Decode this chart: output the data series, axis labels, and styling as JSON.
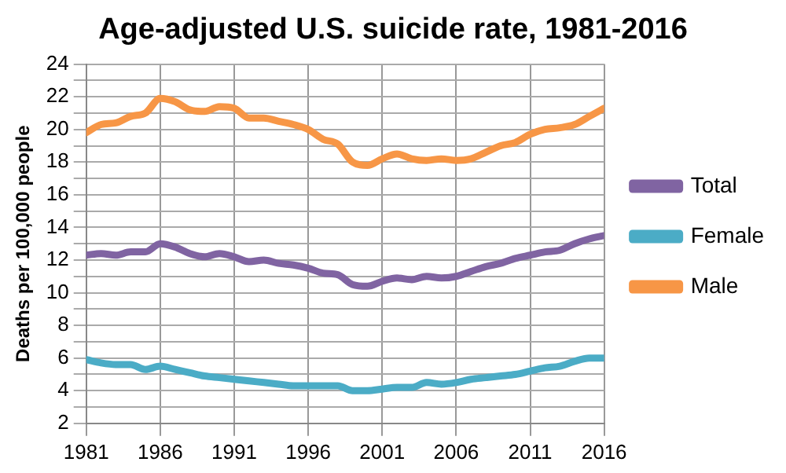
{
  "chart_data": {
    "type": "line",
    "title": "Age-adjusted U.S. suicide rate, 1981-2016",
    "ylabel": "Deaths per 100,000 people",
    "x": [
      1981,
      1982,
      1983,
      1984,
      1985,
      1986,
      1987,
      1988,
      1989,
      1990,
      1991,
      1992,
      1993,
      1994,
      1995,
      1996,
      1997,
      1998,
      1999,
      2000,
      2001,
      2002,
      2003,
      2004,
      2005,
      2006,
      2007,
      2008,
      2009,
      2010,
      2011,
      2012,
      2013,
      2014,
      2015,
      2016
    ],
    "series": [
      {
        "name": "Total",
        "color": "#8064a2",
        "values": [
          12.3,
          12.4,
          12.3,
          12.5,
          12.5,
          13.0,
          12.8,
          12.4,
          12.2,
          12.4,
          12.2,
          11.9,
          12.0,
          11.8,
          11.7,
          11.5,
          11.2,
          11.1,
          10.5,
          10.4,
          10.7,
          10.9,
          10.8,
          11.0,
          10.9,
          11.0,
          11.3,
          11.6,
          11.8,
          12.1,
          12.3,
          12.5,
          12.6,
          13.0,
          13.3,
          13.5
        ]
      },
      {
        "name": "Female",
        "color": "#4bacc6",
        "values": [
          5.9,
          5.7,
          5.6,
          5.6,
          5.3,
          5.5,
          5.3,
          5.1,
          4.9,
          4.8,
          4.7,
          4.6,
          4.5,
          4.4,
          4.3,
          4.3,
          4.3,
          4.3,
          4.0,
          4.0,
          4.1,
          4.2,
          4.2,
          4.5,
          4.4,
          4.5,
          4.7,
          4.8,
          4.9,
          5.0,
          5.2,
          5.4,
          5.5,
          5.8,
          6.0,
          6.0
        ]
      },
      {
        "name": "Male",
        "color": "#f79646",
        "values": [
          19.8,
          20.3,
          20.4,
          20.8,
          21.0,
          21.9,
          21.7,
          21.2,
          21.1,
          21.4,
          21.3,
          20.7,
          20.7,
          20.5,
          20.3,
          20.0,
          19.4,
          19.1,
          18.0,
          17.8,
          18.2,
          18.5,
          18.2,
          18.1,
          18.2,
          18.1,
          18.2,
          18.6,
          19.0,
          19.2,
          19.7,
          20.0,
          20.1,
          20.3,
          20.8,
          21.3
        ]
      }
    ],
    "xlim": [
      1981,
      2016
    ],
    "xticks": [
      1981,
      1986,
      1991,
      1996,
      2001,
      2006,
      2011,
      2016
    ],
    "ylim": [
      2,
      24
    ],
    "yticks": [
      2,
      {
        "value": 3,
        "label": null
      },
      4,
      {
        "value": 5,
        "label": null
      },
      6,
      {
        "value": 7,
        "label": null
      },
      8,
      {
        "value": 9,
        "label": null
      },
      10,
      {
        "value": 11,
        "label": null
      },
      12,
      {
        "value": 13,
        "label": null
      },
      14,
      {
        "value": 15,
        "label": null
      },
      16,
      {
        "value": 17,
        "label": null
      },
      18,
      {
        "value": 19,
        "label": null
      },
      20,
      {
        "value": 21,
        "label": null
      },
      22,
      {
        "value": 23,
        "label": null
      },
      24
    ],
    "grid": true,
    "legend": "right",
    "marker": "none",
    "line_style": "solid"
  }
}
